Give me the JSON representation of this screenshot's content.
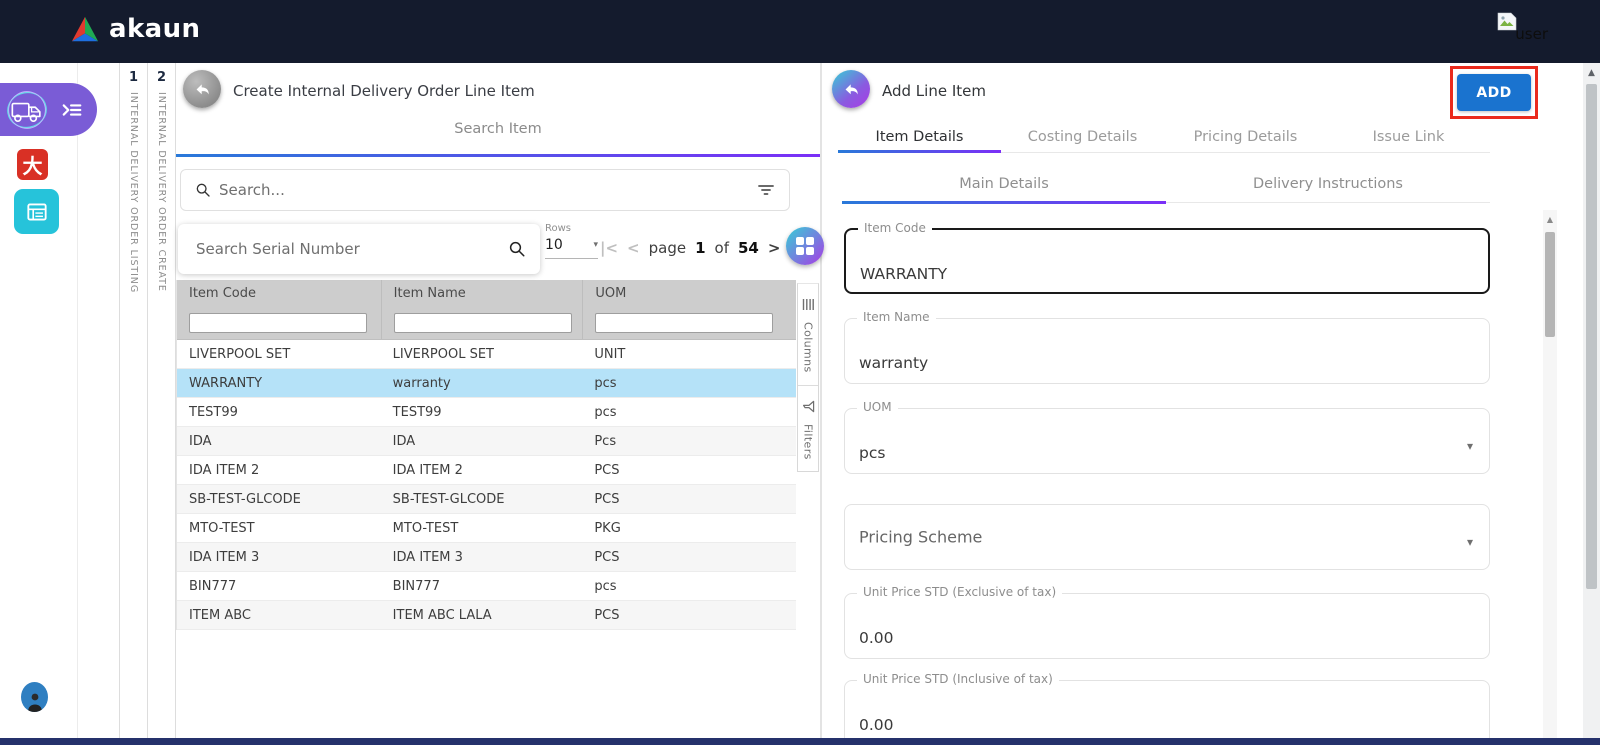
{
  "colors": {
    "topbar": "#141B2D",
    "accent_gradient_start": "#2979D9",
    "accent_gradient_end": "#7B2FF7",
    "add_button": "#1A73CF",
    "annotation_red": "#EA2A1C",
    "selected_row": "#B5E2F8",
    "sidebar_pill_purple": "#7A5CD6",
    "sidebar_red_icon": "#D93025",
    "sidebar_teal_icon": "#26C3DA",
    "circle_button_gradient": "#35D0D6 → #A93BE5"
  },
  "icons": {
    "caret": "▾",
    "scroll_up": "▲",
    "pagination_first": "|<",
    "pagination_prev": "<",
    "pagination_next": ">",
    "pagination_last": ">|"
  },
  "topbar": {
    "logo_text": "akaun",
    "user_alt_label": "user"
  },
  "workspace_tabs": [
    {
      "number": "1",
      "label": "INTERNAL DELIVERY ORDER LISTING"
    },
    {
      "number": "2",
      "label": "INTERNAL DELIVERY ORDER CREATE"
    }
  ],
  "left_panel": {
    "title": "Create Internal Delivery Order Line Item",
    "tab_label": "Search Item",
    "search_placeholder": "Search...",
    "serial_search_placeholder": "Search Serial Number",
    "rows_label": "Rows",
    "rows_value": "10",
    "pagination": {
      "page_label": "page",
      "current_page": "1",
      "of_label": "of",
      "total_pages": "54"
    },
    "table": {
      "columns": [
        "Item Code",
        "Item Name",
        "UOM"
      ],
      "selected_row_index": 1,
      "rows": [
        [
          "LIVERPOOL SET",
          "LIVERPOOL SET",
          "UNIT"
        ],
        [
          "WARRANTY",
          "warranty",
          "pcs"
        ],
        [
          "TEST99",
          "TEST99",
          "pcs"
        ],
        [
          "IDA",
          "IDA",
          "Pcs"
        ],
        [
          "IDA ITEM 2",
          "IDA ITEM 2",
          "PCS"
        ],
        [
          "SB-TEST-GLCODE",
          "SB-TEST-GLCODE",
          "PCS"
        ],
        [
          "MTO-TEST",
          "MTO-TEST",
          "PKG"
        ],
        [
          "IDA ITEM 3",
          "IDA ITEM 3",
          "PCS"
        ],
        [
          "BIN777",
          "BIN777",
          "pcs"
        ],
        [
          "ITEM ABC",
          "ITEM ABC LALA",
          "PCS"
        ]
      ]
    },
    "side_tools": [
      {
        "label": "Columns",
        "icon": "columns-icon"
      },
      {
        "label": "Filters",
        "icon": "filter-funnel-icon"
      }
    ]
  },
  "right_panel": {
    "title": "Add Line Item",
    "add_button_label": "ADD",
    "tabs": [
      "Item Details",
      "Costing Details",
      "Pricing Details",
      "Issue Link"
    ],
    "active_tab": "Item Details",
    "sub_tabs": [
      "Main Details",
      "Delivery Instructions"
    ],
    "active_sub_tab": "Main Details",
    "fields": [
      {
        "label": "Item Code",
        "value": "WARRANTY",
        "type": "text",
        "focused": true
      },
      {
        "label": "Item Name",
        "value": "warranty",
        "type": "text"
      },
      {
        "label": "UOM",
        "value": "pcs",
        "type": "select"
      },
      {
        "label": "",
        "value": "Pricing Scheme",
        "type": "select",
        "is_placeholder": true
      },
      {
        "label": "Unit Price STD (Exclusive of tax)",
        "value": "0.00",
        "type": "text"
      },
      {
        "label": "Unit Price STD (Inclusive of tax)",
        "value": "0.00",
        "type": "text"
      }
    ]
  }
}
